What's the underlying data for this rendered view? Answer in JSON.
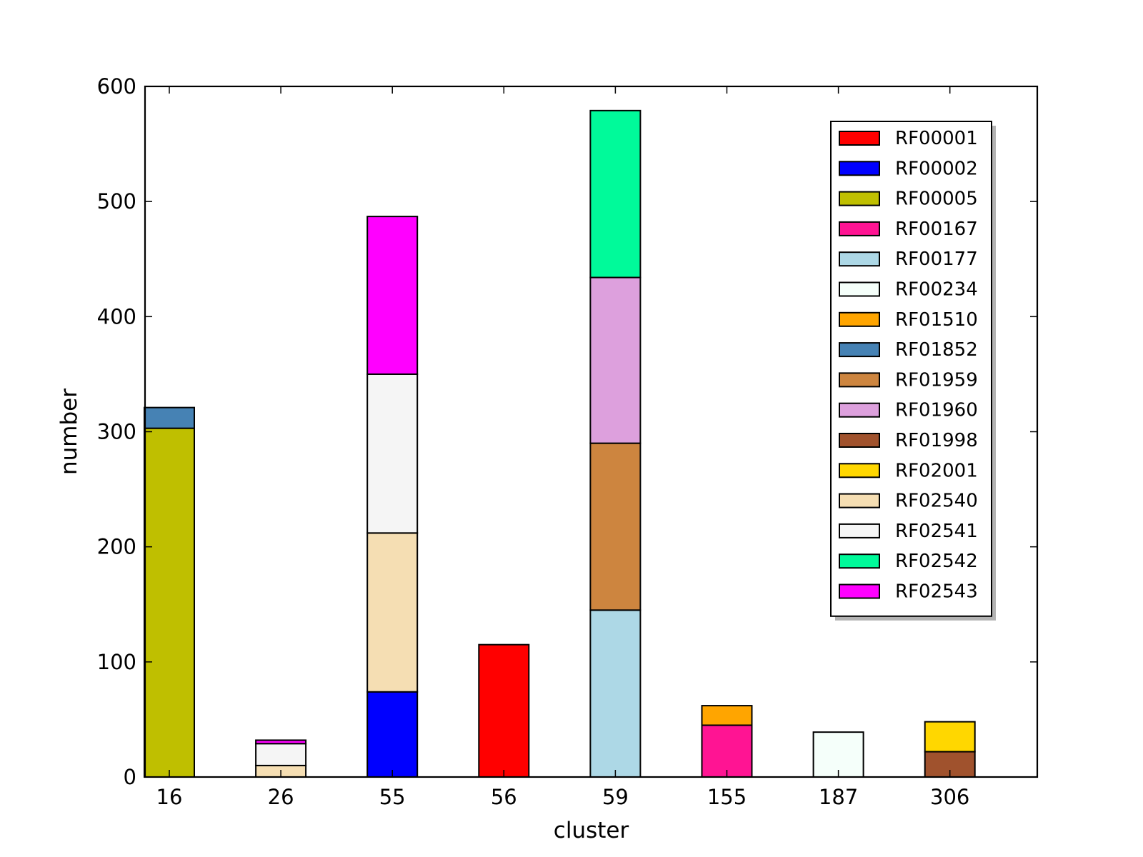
{
  "chart_data": {
    "type": "bar",
    "stacked": true,
    "title": "",
    "xlabel": "cluster",
    "ylabel": "number",
    "ylim": [
      0,
      600
    ],
    "yticks": [
      0,
      100,
      200,
      300,
      400,
      500,
      600
    ],
    "categories": [
      "16",
      "26",
      "55",
      "56",
      "59",
      "155",
      "187",
      "306"
    ],
    "grid": false,
    "legend_position": "top-right",
    "series": [
      {
        "name": "RF00001",
        "color": "#ff0000",
        "values": [
          0,
          0,
          0,
          115,
          0,
          0,
          0,
          0
        ]
      },
      {
        "name": "RF00002",
        "color": "#0000ff",
        "values": [
          0,
          0,
          74,
          0,
          0,
          0,
          0,
          0
        ]
      },
      {
        "name": "RF00005",
        "color": "#bfbf00",
        "values": [
          303,
          0,
          0,
          0,
          0,
          0,
          0,
          0
        ]
      },
      {
        "name": "RF00167",
        "color": "#ff1493",
        "values": [
          0,
          0,
          0,
          0,
          0,
          45,
          0,
          0
        ]
      },
      {
        "name": "RF00177",
        "color": "#add8e6",
        "values": [
          0,
          0,
          0,
          0,
          145,
          0,
          0,
          0
        ]
      },
      {
        "name": "RF00234",
        "color": "#f5fffa",
        "values": [
          0,
          0,
          0,
          0,
          0,
          0,
          39,
          0
        ]
      },
      {
        "name": "RF01510",
        "color": "#ffa500",
        "values": [
          0,
          0,
          0,
          0,
          0,
          17,
          0,
          0
        ]
      },
      {
        "name": "RF01852",
        "color": "#4682b4",
        "values": [
          18,
          0,
          0,
          0,
          0,
          0,
          0,
          0
        ]
      },
      {
        "name": "RF01959",
        "color": "#cd853f",
        "values": [
          0,
          0,
          0,
          0,
          145,
          0,
          0,
          0
        ]
      },
      {
        "name": "RF01960",
        "color": "#dda0dd",
        "values": [
          0,
          0,
          0,
          0,
          144,
          0,
          0,
          0
        ]
      },
      {
        "name": "RF01998",
        "color": "#a0522d",
        "values": [
          0,
          0,
          0,
          0,
          0,
          0,
          0,
          22
        ]
      },
      {
        "name": "RF02001",
        "color": "#ffd700",
        "values": [
          0,
          0,
          0,
          0,
          0,
          0,
          0,
          26
        ]
      },
      {
        "name": "RF02540",
        "color": "#f5deb3",
        "values": [
          0,
          10,
          138,
          0,
          0,
          0,
          0,
          0
        ]
      },
      {
        "name": "RF02541",
        "color": "#f5f5f5",
        "values": [
          0,
          19,
          138,
          0,
          0,
          0,
          0,
          0
        ]
      },
      {
        "name": "RF02542",
        "color": "#00fa9a",
        "values": [
          0,
          0,
          0,
          0,
          145,
          0,
          0,
          0
        ]
      },
      {
        "name": "RF02543",
        "color": "#ff00ff",
        "values": [
          0,
          3,
          137,
          0,
          0,
          0,
          0,
          0
        ]
      }
    ]
  }
}
